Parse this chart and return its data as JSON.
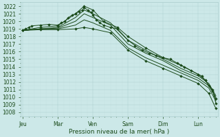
{
  "title": "",
  "xlabel": "Pression niveau de la mer( hPa )",
  "background_color": "#cce8e8",
  "grid_major_color": "#aacccc",
  "grid_minor_color": "#bbdddd",
  "line_color": "#1a4a1a",
  "ylim": [
    1007.5,
    1022.5
  ],
  "ytick_min": 1008,
  "ytick_max": 1022,
  "ytick_step": 1,
  "day_labels": [
    "Jeu",
    "Mar",
    "Ven",
    "Sam",
    "Dim",
    "Lun"
  ],
  "day_positions": [
    0,
    1,
    2,
    3,
    4,
    5
  ],
  "xlim": [
    -0.05,
    5.55
  ],
  "n_points": 48,
  "series": [
    {
      "pts": [
        [
          0,
          1018.8
        ],
        [
          0.08,
          1019.0
        ],
        [
          0.17,
          1019.2
        ],
        [
          0.25,
          1019.4
        ],
        [
          0.5,
          1019.5
        ],
        [
          0.75,
          1019.6
        ],
        [
          1.0,
          1019.5
        ],
        [
          1.1,
          1019.8
        ],
        [
          1.2,
          1020.0
        ],
        [
          1.3,
          1020.5
        ],
        [
          1.4,
          1020.8
        ],
        [
          1.5,
          1021.0
        ],
        [
          1.6,
          1021.3
        ],
        [
          1.7,
          1021.5
        ],
        [
          1.75,
          1021.8
        ],
        [
          1.85,
          1021.5
        ],
        [
          1.95,
          1021.2
        ],
        [
          2.0,
          1020.8
        ],
        [
          2.1,
          1020.2
        ],
        [
          2.2,
          1019.8
        ],
        [
          2.3,
          1019.5
        ],
        [
          2.5,
          1019.2
        ],
        [
          2.7,
          1019.0
        ],
        [
          3.0,
          1017.5
        ],
        [
          3.2,
          1016.8
        ],
        [
          3.4,
          1016.2
        ],
        [
          3.6,
          1015.8
        ],
        [
          3.8,
          1015.5
        ],
        [
          4.0,
          1015.2
        ],
        [
          4.2,
          1015.0
        ],
        [
          4.4,
          1014.5
        ],
        [
          4.6,
          1014.0
        ],
        [
          4.8,
          1013.5
        ],
        [
          5.0,
          1013.0
        ],
        [
          5.1,
          1012.8
        ],
        [
          5.2,
          1012.2
        ],
        [
          5.3,
          1011.5
        ],
        [
          5.4,
          1010.8
        ],
        [
          5.5,
          1009.8
        ]
      ],
      "marker": true
    },
    {
      "pts": [
        [
          0,
          1018.8
        ],
        [
          0.5,
          1019.2
        ],
        [
          1.0,
          1019.4
        ],
        [
          1.5,
          1021.0
        ],
        [
          1.75,
          1022.0
        ],
        [
          2.0,
          1021.5
        ],
        [
          2.3,
          1020.0
        ],
        [
          2.7,
          1019.2
        ],
        [
          3.0,
          1018.0
        ],
        [
          3.5,
          1016.5
        ],
        [
          4.0,
          1015.2
        ],
        [
          4.5,
          1014.2
        ],
        [
          5.0,
          1013.0
        ],
        [
          5.2,
          1012.2
        ],
        [
          5.4,
          1011.0
        ],
        [
          5.5,
          1009.2
        ]
      ],
      "marker": true
    },
    {
      "pts": [
        [
          0,
          1018.8
        ],
        [
          0.5,
          1019.0
        ],
        [
          1.0,
          1019.2
        ],
        [
          1.5,
          1020.5
        ],
        [
          1.75,
          1021.5
        ],
        [
          2.0,
          1021.0
        ],
        [
          2.5,
          1019.8
        ],
        [
          3.0,
          1017.5
        ],
        [
          3.5,
          1016.2
        ],
        [
          4.0,
          1015.0
        ],
        [
          4.5,
          1013.8
        ],
        [
          5.0,
          1012.8
        ],
        [
          5.3,
          1011.8
        ],
        [
          5.5,
          1010.2
        ]
      ],
      "marker": false
    },
    {
      "pts": [
        [
          0,
          1018.8
        ],
        [
          0.5,
          1019.0
        ],
        [
          1.0,
          1019.1
        ],
        [
          1.5,
          1020.0
        ],
        [
          1.75,
          1021.0
        ],
        [
          2.0,
          1020.5
        ],
        [
          2.5,
          1019.5
        ],
        [
          3.0,
          1017.0
        ],
        [
          3.5,
          1015.8
        ],
        [
          4.0,
          1014.8
        ],
        [
          4.5,
          1013.5
        ],
        [
          5.0,
          1012.5
        ],
        [
          5.3,
          1011.5
        ],
        [
          5.5,
          1010.0
        ]
      ],
      "marker": false
    },
    {
      "pts": [
        [
          0,
          1018.8
        ],
        [
          0.5,
          1019.0
        ],
        [
          1.0,
          1019.0
        ],
        [
          1.5,
          1019.5
        ],
        [
          1.75,
          1020.2
        ],
        [
          2.0,
          1019.8
        ],
        [
          2.5,
          1018.8
        ],
        [
          3.0,
          1016.5
        ],
        [
          3.5,
          1015.2
        ],
        [
          4.0,
          1014.2
        ],
        [
          4.5,
          1013.2
        ],
        [
          5.0,
          1012.2
        ],
        [
          5.3,
          1011.2
        ],
        [
          5.5,
          1009.5
        ]
      ],
      "marker": false
    },
    {
      "pts": [
        [
          0,
          1018.8
        ],
        [
          0.5,
          1018.9
        ],
        [
          1.0,
          1018.9
        ],
        [
          1.5,
          1019.0
        ],
        [
          1.75,
          1019.2
        ],
        [
          2.0,
          1019.0
        ],
        [
          2.5,
          1018.5
        ],
        [
          3.0,
          1016.2
        ],
        [
          3.5,
          1014.8
        ],
        [
          4.0,
          1013.8
        ],
        [
          4.5,
          1012.8
        ],
        [
          5.0,
          1011.8
        ],
        [
          5.3,
          1010.5
        ],
        [
          5.5,
          1008.5
        ]
      ],
      "marker": true
    }
  ],
  "marker_style": "D",
  "marker_size": 2.0,
  "linewidth": 0.7,
  "tick_fontsize": 5.5,
  "xlabel_fontsize": 6.5,
  "figsize": [
    3.2,
    2.0
  ],
  "dpi": 100
}
